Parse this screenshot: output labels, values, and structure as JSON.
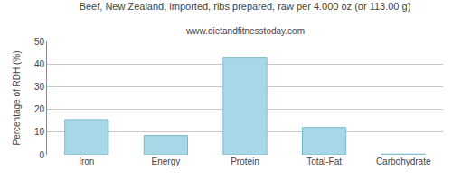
{
  "chart_data": {
    "type": "bar",
    "title": "Beef, New Zealand, imported, ribs prepared, raw per 4.000 oz (or 113.00 g)",
    "subtitle": "www.dietandfitnesstoday.com",
    "categories": [
      "Iron",
      "Energy",
      "Protein",
      "Total-Fat",
      "Carbohydrate"
    ],
    "values": [
      15.5,
      8.5,
      43,
      12,
      0.3
    ],
    "color": "#a8d8e8",
    "ylabel": "Percentage of RDH (%)",
    "ylim": [
      0,
      50
    ],
    "yticks": [
      0,
      10,
      20,
      30,
      40,
      50
    ],
    "grid": true
  }
}
